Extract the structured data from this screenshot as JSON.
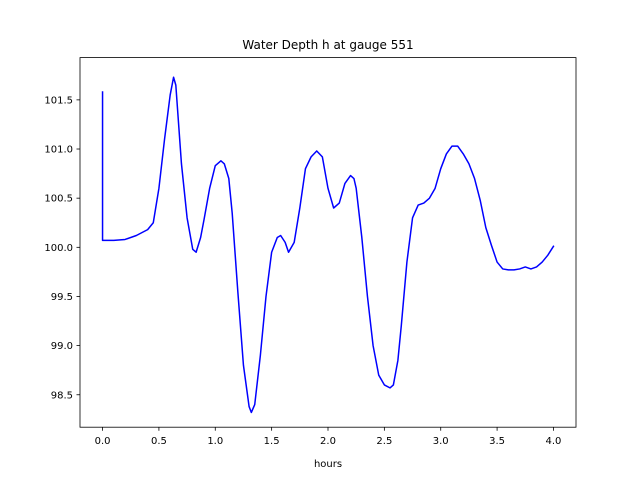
{
  "chart_data": {
    "type": "line",
    "title": "Water Depth h at gauge 551",
    "xlabel": "hours",
    "ylabel": "",
    "xlim": [
      -0.2,
      4.2
    ],
    "ylim": [
      98.17,
      101.93
    ],
    "xticks": [
      0.0,
      0.5,
      1.0,
      1.5,
      2.0,
      2.5,
      3.0,
      3.5,
      4.0
    ],
    "xtick_labels": [
      "0.0",
      "0.5",
      "1.0",
      "1.5",
      "2.0",
      "2.5",
      "3.0",
      "3.5",
      "4.0"
    ],
    "yticks": [
      98.5,
      99.0,
      99.5,
      100.0,
      100.5,
      101.0,
      101.5
    ],
    "ytick_labels": [
      "98.5",
      "99.0",
      "99.5",
      "100.0",
      "100.5",
      "101.0",
      "101.5"
    ],
    "grid": false,
    "series": [
      {
        "color": "#0000ff",
        "x": [
          0.0,
          0.0,
          0.0,
          0.1,
          0.2,
          0.3,
          0.4,
          0.45,
          0.5,
          0.55,
          0.6,
          0.63,
          0.65,
          0.7,
          0.75,
          0.8,
          0.83,
          0.87,
          0.9,
          0.95,
          1.0,
          1.05,
          1.08,
          1.12,
          1.15,
          1.2,
          1.25,
          1.3,
          1.32,
          1.35,
          1.4,
          1.45,
          1.5,
          1.55,
          1.58,
          1.62,
          1.65,
          1.7,
          1.75,
          1.8,
          1.85,
          1.9,
          1.95,
          2.0,
          2.05,
          2.1,
          2.15,
          2.2,
          2.23,
          2.25,
          2.3,
          2.35,
          2.4,
          2.45,
          2.5,
          2.55,
          2.58,
          2.62,
          2.65,
          2.7,
          2.75,
          2.8,
          2.85,
          2.9,
          2.95,
          3.0,
          3.05,
          3.1,
          3.15,
          3.2,
          3.25,
          3.3,
          3.35,
          3.4,
          3.45,
          3.5,
          3.55,
          3.6,
          3.65,
          3.7,
          3.75,
          3.8,
          3.85,
          3.9,
          3.95,
          4.0
        ],
        "y": [
          101.58,
          100.08,
          100.07,
          100.07,
          100.08,
          100.12,
          100.18,
          100.25,
          100.6,
          101.1,
          101.55,
          101.73,
          101.65,
          100.85,
          100.3,
          99.98,
          99.95,
          100.1,
          100.28,
          100.6,
          100.83,
          100.88,
          100.85,
          100.7,
          100.35,
          99.55,
          98.8,
          98.38,
          98.32,
          98.4,
          98.9,
          99.5,
          99.95,
          100.1,
          100.12,
          100.05,
          99.95,
          100.05,
          100.4,
          100.8,
          100.92,
          100.98,
          100.92,
          100.6,
          100.4,
          100.45,
          100.65,
          100.73,
          100.7,
          100.6,
          100.1,
          99.5,
          99.0,
          98.7,
          98.6,
          98.57,
          98.6,
          98.85,
          99.2,
          99.85,
          100.3,
          100.43,
          100.45,
          100.5,
          100.6,
          100.8,
          100.95,
          101.03,
          101.03,
          100.95,
          100.85,
          100.7,
          100.48,
          100.2,
          100.02,
          99.85,
          99.78,
          99.77,
          99.77,
          99.78,
          99.8,
          99.78,
          99.8,
          99.85,
          99.92,
          100.01
        ]
      }
    ]
  }
}
